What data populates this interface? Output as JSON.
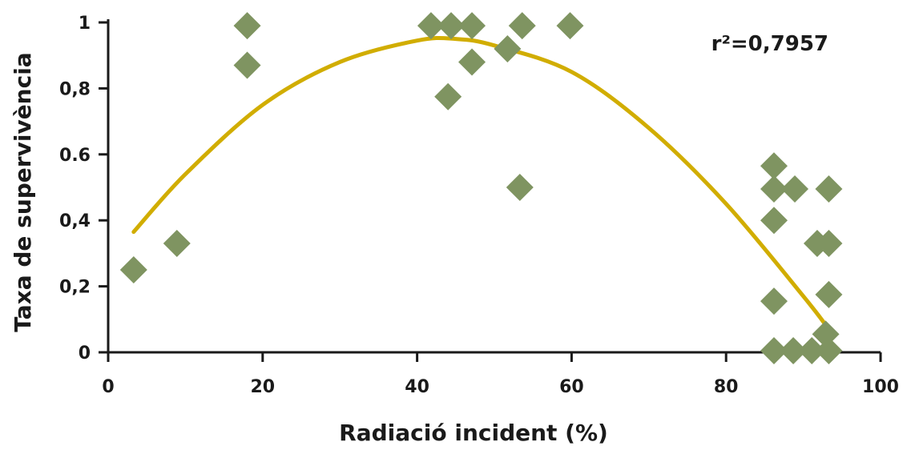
{
  "chart_data": {
    "type": "scatter",
    "xlabel": "Radiació incident (%)",
    "ylabel": "Taxa de supervivència",
    "xlim": [
      0,
      100
    ],
    "ylim": [
      0,
      1
    ],
    "x_ticks": [
      0,
      20,
      40,
      60,
      80,
      100
    ],
    "x_tick_labels": [
      "0",
      "20",
      "40",
      "60",
      "80",
      "100"
    ],
    "y_ticks": [
      0,
      0.2,
      0.4,
      0.6,
      0.8,
      1
    ],
    "y_tick_labels": [
      "0",
      "0,2",
      "0,4",
      "0.6",
      "0,8",
      "1"
    ],
    "grid": false,
    "annotation": "r²=0,7957",
    "colors": {
      "points": "#7f9461",
      "fit": "#d1ad00",
      "axis": "#1a1a1a"
    },
    "points": [
      {
        "x": 3.3,
        "y": 0.25
      },
      {
        "x": 8.9,
        "y": 0.33
      },
      {
        "x": 18.0,
        "y": 0.99
      },
      {
        "x": 18.0,
        "y": 0.87
      },
      {
        "x": 41.8,
        "y": 0.99
      },
      {
        "x": 44.4,
        "y": 0.99
      },
      {
        "x": 47.1,
        "y": 0.99
      },
      {
        "x": 44.0,
        "y": 0.775
      },
      {
        "x": 47.1,
        "y": 0.88
      },
      {
        "x": 51.7,
        "y": 0.92
      },
      {
        "x": 53.6,
        "y": 0.99
      },
      {
        "x": 53.3,
        "y": 0.5
      },
      {
        "x": 59.8,
        "y": 0.99
      },
      {
        "x": 86.2,
        "y": 0.565
      },
      {
        "x": 86.2,
        "y": 0.495
      },
      {
        "x": 88.9,
        "y": 0.495
      },
      {
        "x": 86.2,
        "y": 0.4
      },
      {
        "x": 86.2,
        "y": 0.155
      },
      {
        "x": 86.2,
        "y": 0.005
      },
      {
        "x": 88.7,
        "y": 0.005
      },
      {
        "x": 91.1,
        "y": 0.005
      },
      {
        "x": 93.3,
        "y": 0.005
      },
      {
        "x": 91.8,
        "y": 0.33
      },
      {
        "x": 93.3,
        "y": 0.33
      },
      {
        "x": 93.3,
        "y": 0.495
      },
      {
        "x": 93.3,
        "y": 0.175
      },
      {
        "x": 92.9,
        "y": 0.055
      }
    ],
    "fit": {
      "type": "quadratic",
      "x_range": [
        3.3,
        93.3
      ],
      "curve": [
        {
          "x": 3.3,
          "y": 0.365
        },
        {
          "x": 10,
          "y": 0.54
        },
        {
          "x": 20,
          "y": 0.75
        },
        {
          "x": 30,
          "y": 0.88
        },
        {
          "x": 40,
          "y": 0.945
        },
        {
          "x": 45,
          "y": 0.95
        },
        {
          "x": 50,
          "y": 0.93
        },
        {
          "x": 60,
          "y": 0.85
        },
        {
          "x": 70,
          "y": 0.68
        },
        {
          "x": 80,
          "y": 0.45
        },
        {
          "x": 90,
          "y": 0.17
        },
        {
          "x": 93.3,
          "y": 0.07
        }
      ]
    }
  }
}
